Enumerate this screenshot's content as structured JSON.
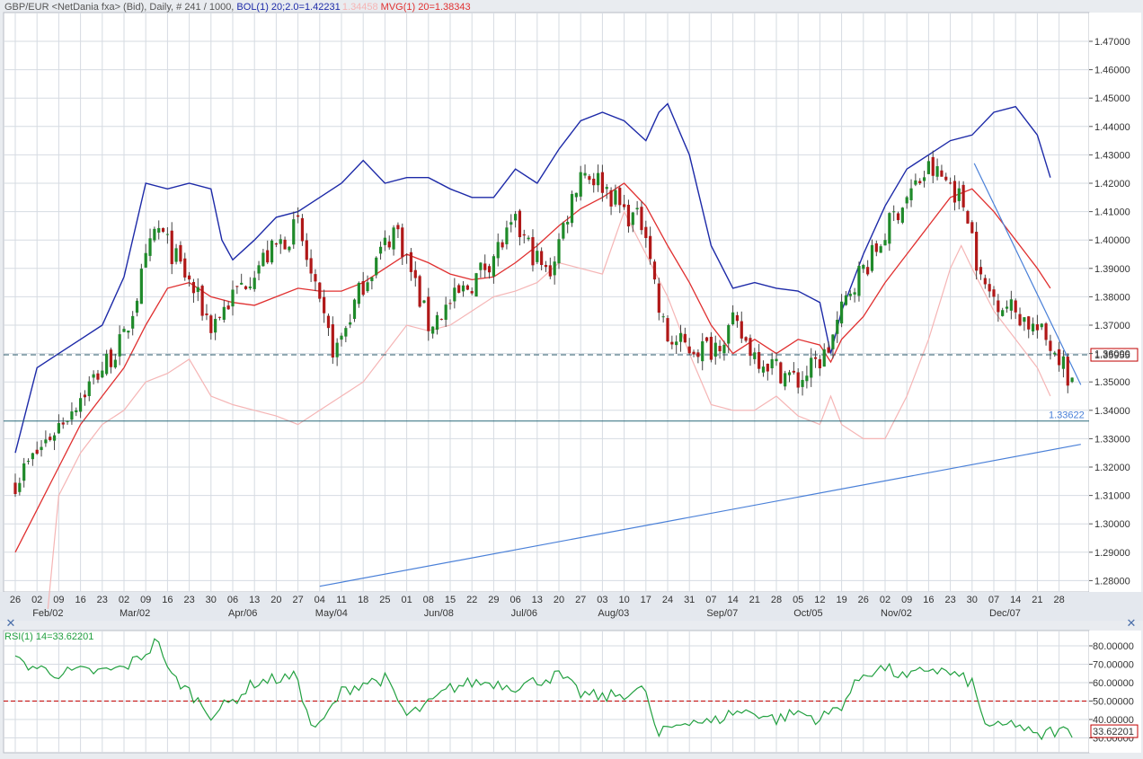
{
  "header": {
    "symbol": "GBP/EUR <NetDania fxa> (Bid), Daily, # 241 / 1000, ",
    "bol_label": "BOL(1) 20;2.0=1.42231",
    "bol_lower_label": "1.34458",
    "mvg_label": "MVG(1) 20=1.38343"
  },
  "rsi_panel": {
    "label": "RSI(1) 14=33.62201"
  },
  "price_axis": {
    "ticks": [
      "1.47000",
      "1.46000",
      "1.45000",
      "1.44000",
      "1.43000",
      "1.42000",
      "1.41000",
      "1.40000",
      "1.39000",
      "1.38000",
      "1.37000",
      "1.36000",
      "1.35000",
      "1.34000",
      "1.33000",
      "1.32000",
      "1.31000",
      "1.30000",
      "1.29000",
      "1.28000"
    ],
    "current_price": "1.35955",
    "support_level": "1.33622"
  },
  "rsi_axis": {
    "ticks": [
      "80.00000",
      "70.00000",
      "60.00000",
      "50.00000",
      "40.00000",
      "30.00000"
    ],
    "current_value": "33.62201"
  },
  "date_axis": {
    "days": [
      "26",
      "02",
      "09",
      "16",
      "23",
      "02",
      "09",
      "16",
      "23",
      "30",
      "06",
      "13",
      "20",
      "27",
      "04",
      "11",
      "18",
      "25",
      "01",
      "08",
      "15",
      "22",
      "29",
      "06",
      "13",
      "20",
      "27",
      "03",
      "10",
      "17",
      "24",
      "31",
      "07",
      "14",
      "21",
      "28",
      "05",
      "12",
      "19",
      "26",
      "02",
      "09",
      "16",
      "23",
      "30",
      "07",
      "14",
      "21",
      "28"
    ],
    "months": [
      {
        "label": "Feb/02",
        "index": 1
      },
      {
        "label": "Mar/02",
        "index": 5
      },
      {
        "label": "Apr/06",
        "index": 10
      },
      {
        "label": "May/04",
        "index": 14
      },
      {
        "label": "Jun/08",
        "index": 19
      },
      {
        "label": "Jul/06",
        "index": 23
      },
      {
        "label": "Aug/03",
        "index": 27
      },
      {
        "label": "Sep/07",
        "index": 32
      },
      {
        "label": "Oct/05",
        "index": 36
      },
      {
        "label": "Nov/02",
        "index": 40
      },
      {
        "label": "Dec/07",
        "index": 45
      }
    ]
  },
  "colors": {
    "up": "#1f8a2a",
    "down": "#b01818",
    "bol_upper": "#1d2aa8",
    "bol_lower": "#f5b5b5",
    "mvg": "#e03030",
    "trend": "#4a80d8",
    "rsi": "#22a040",
    "dash_red": "#c00000",
    "dash_price": "#2a5a6a"
  },
  "chart_data": {
    "type": "candlestick",
    "title": "GBP/EUR <NetDania fxa> (Bid), Daily",
    "ylim": [
      1.28,
      1.475
    ],
    "grid": true,
    "horizontal_lines": [
      1.33622,
      1.35955
    ],
    "trendlines": [
      {
        "x": [
          14,
          49
        ],
        "y": [
          1.278,
          1.328
        ]
      },
      {
        "x": [
          44.1,
          49
        ],
        "y": [
          1.427,
          1.349
        ]
      }
    ],
    "anchors": [
      [
        0,
        1.315,
        1.3,
        1.295
      ],
      [
        5,
        1.365,
        1.375,
        1.325
      ],
      [
        6.5,
        1.405,
        1.41,
        1.345
      ],
      [
        8,
        1.385,
        1.38,
        1.365
      ],
      [
        9,
        1.37,
        1.385,
        1.365
      ],
      [
        11,
        1.39,
        1.375,
        1.343
      ],
      [
        13,
        1.405,
        1.385,
        1.34
      ],
      [
        14,
        1.375,
        1.375,
        1.34
      ],
      [
        14.7,
        1.36,
        1.375,
        1.345
      ],
      [
        16,
        1.385,
        1.38,
        1.345
      ],
      [
        17.5,
        1.405,
        1.385,
        1.35
      ],
      [
        19,
        1.37,
        1.388,
        1.355
      ],
      [
        21,
        1.385,
        1.38,
        1.36
      ],
      [
        22,
        1.395,
        1.38,
        1.37
      ],
      [
        23,
        1.405,
        1.385,
        1.38
      ],
      [
        24.5,
        1.387,
        1.397,
        1.38
      ],
      [
        26,
        1.425,
        1.405,
        1.385
      ],
      [
        27,
        1.42,
        1.415,
        1.39
      ],
      [
        28,
        1.41,
        1.422,
        1.4
      ],
      [
        29,
        1.405,
        1.415,
        1.395
      ],
      [
        29.6,
        1.375,
        1.405,
        1.37
      ],
      [
        30,
        1.365,
        1.395,
        1.36
      ],
      [
        31,
        1.362,
        1.385,
        1.35
      ],
      [
        32,
        1.362,
        1.374,
        1.345
      ],
      [
        33,
        1.37,
        1.368,
        1.343
      ],
      [
        34,
        1.36,
        1.363,
        1.34
      ],
      [
        35,
        1.355,
        1.36,
        1.338
      ],
      [
        36,
        1.35,
        1.357,
        1.335
      ],
      [
        37.3,
        1.36,
        1.355,
        1.333
      ],
      [
        38.5,
        1.385,
        1.365,
        1.34
      ],
      [
        39.5,
        1.395,
        1.38,
        1.365
      ],
      [
        40.5,
        1.41,
        1.392,
        1.37
      ],
      [
        42,
        1.425,
        1.405,
        1.385
      ],
      [
        43,
        1.42,
        1.415,
        1.395
      ],
      [
        43.8,
        1.41,
        1.418,
        1.4
      ],
      [
        44.4,
        1.385,
        1.41,
        1.39
      ],
      [
        45,
        1.38,
        1.4,
        1.383
      ],
      [
        46,
        1.375,
        1.392,
        1.37
      ],
      [
        47,
        1.368,
        1.385,
        1.355
      ],
      [
        48,
        1.36,
        1.378,
        1.345
      ],
      [
        48.5,
        1.35,
        1.374,
        1.345
      ]
    ],
    "bb_upper": [
      [
        0,
        1.325
      ],
      [
        1,
        1.355
      ],
      [
        2,
        1.36
      ],
      [
        3,
        1.365
      ],
      [
        4,
        1.37
      ],
      [
        5,
        1.387
      ],
      [
        6,
        1.42
      ],
      [
        7,
        1.418
      ],
      [
        8,
        1.42
      ],
      [
        9,
        1.418
      ],
      [
        9.5,
        1.4
      ],
      [
        10,
        1.393
      ],
      [
        11,
        1.4
      ],
      [
        12,
        1.408
      ],
      [
        13,
        1.41
      ],
      [
        14,
        1.415
      ],
      [
        15,
        1.42
      ],
      [
        16,
        1.428
      ],
      [
        17,
        1.42
      ],
      [
        18,
        1.422
      ],
      [
        19,
        1.422
      ],
      [
        20,
        1.418
      ],
      [
        21,
        1.415
      ],
      [
        22,
        1.415
      ],
      [
        23,
        1.425
      ],
      [
        24,
        1.42
      ],
      [
        25,
        1.432
      ],
      [
        26,
        1.442
      ],
      [
        27,
        1.445
      ],
      [
        28,
        1.442
      ],
      [
        29,
        1.435
      ],
      [
        29.6,
        1.445
      ],
      [
        30,
        1.448
      ],
      [
        31,
        1.43
      ],
      [
        32,
        1.398
      ],
      [
        33,
        1.383
      ],
      [
        34,
        1.385
      ],
      [
        35,
        1.383
      ],
      [
        36,
        1.382
      ],
      [
        37,
        1.378
      ],
      [
        37.5,
        1.36
      ],
      [
        38,
        1.375
      ],
      [
        39,
        1.395
      ],
      [
        40,
        1.412
      ],
      [
        41,
        1.425
      ],
      [
        42,
        1.43
      ],
      [
        43,
        1.435
      ],
      [
        44,
        1.437
      ],
      [
        45,
        1.445
      ],
      [
        46,
        1.447
      ],
      [
        47,
        1.437
      ],
      [
        47.6,
        1.422
      ]
    ],
    "bb_lower": [
      [
        1.5,
        1.27
      ],
      [
        2,
        1.31
      ],
      [
        3,
        1.325
      ],
      [
        4,
        1.335
      ],
      [
        5,
        1.34
      ],
      [
        6,
        1.35
      ],
      [
        7,
        1.353
      ],
      [
        8,
        1.358
      ],
      [
        9,
        1.345
      ],
      [
        10,
        1.342
      ],
      [
        11,
        1.34
      ],
      [
        12,
        1.338
      ],
      [
        13,
        1.335
      ],
      [
        14,
        1.34
      ],
      [
        15,
        1.345
      ],
      [
        16,
        1.35
      ],
      [
        17,
        1.36
      ],
      [
        18,
        1.37
      ],
      [
        19,
        1.368
      ],
      [
        20,
        1.37
      ],
      [
        21,
        1.375
      ],
      [
        22,
        1.38
      ],
      [
        23,
        1.382
      ],
      [
        24,
        1.385
      ],
      [
        25,
        1.392
      ],
      [
        26,
        1.39
      ],
      [
        27,
        1.388
      ],
      [
        28,
        1.41
      ],
      [
        29,
        1.395
      ],
      [
        30,
        1.38
      ],
      [
        31,
        1.36
      ],
      [
        32,
        1.342
      ],
      [
        33,
        1.34
      ],
      [
        34,
        1.34
      ],
      [
        35,
        1.345
      ],
      [
        36,
        1.338
      ],
      [
        37,
        1.335
      ],
      [
        37.5,
        1.345
      ],
      [
        38,
        1.335
      ],
      [
        39,
        1.33
      ],
      [
        40,
        1.33
      ],
      [
        41,
        1.345
      ],
      [
        42,
        1.365
      ],
      [
        43,
        1.39
      ],
      [
        43.5,
        1.398
      ],
      [
        44,
        1.39
      ],
      [
        45,
        1.375
      ],
      [
        46,
        1.365
      ],
      [
        47,
        1.355
      ],
      [
        47.6,
        1.345
      ]
    ],
    "mvg20": [
      [
        0,
        1.29
      ],
      [
        1,
        1.305
      ],
      [
        2,
        1.32
      ],
      [
        3,
        1.335
      ],
      [
        4,
        1.345
      ],
      [
        5,
        1.355
      ],
      [
        6,
        1.37
      ],
      [
        7,
        1.383
      ],
      [
        8,
        1.385
      ],
      [
        9,
        1.38
      ],
      [
        10,
        1.378
      ],
      [
        11,
        1.377
      ],
      [
        12,
        1.38
      ],
      [
        13,
        1.383
      ],
      [
        14,
        1.382
      ],
      [
        15,
        1.382
      ],
      [
        16,
        1.385
      ],
      [
        17,
        1.39
      ],
      [
        18,
        1.395
      ],
      [
        19,
        1.392
      ],
      [
        20,
        1.388
      ],
      [
        21,
        1.386
      ],
      [
        22,
        1.387
      ],
      [
        23,
        1.392
      ],
      [
        24,
        1.398
      ],
      [
        25,
        1.405
      ],
      [
        26,
        1.411
      ],
      [
        27,
        1.415
      ],
      [
        28,
        1.42
      ],
      [
        29,
        1.412
      ],
      [
        30,
        1.398
      ],
      [
        31,
        1.385
      ],
      [
        32,
        1.37
      ],
      [
        33,
        1.36
      ],
      [
        34,
        1.365
      ],
      [
        35,
        1.36
      ],
      [
        36,
        1.365
      ],
      [
        37,
        1.363
      ],
      [
        37.5,
        1.357
      ],
      [
        38,
        1.365
      ],
      [
        39,
        1.373
      ],
      [
        40,
        1.385
      ],
      [
        41,
        1.395
      ],
      [
        42,
        1.405
      ],
      [
        43,
        1.415
      ],
      [
        44,
        1.418
      ],
      [
        45,
        1.41
      ],
      [
        46,
        1.4
      ],
      [
        47,
        1.39
      ],
      [
        47.6,
        1.383
      ]
    ],
    "rsi": [
      [
        0,
        72
      ],
      [
        1,
        68
      ],
      [
        2,
        65
      ],
      [
        3,
        66
      ],
      [
        4,
        66
      ],
      [
        5,
        68
      ],
      [
        6,
        76
      ],
      [
        6.6,
        84
      ],
      [
        7,
        66
      ],
      [
        8,
        55
      ],
      [
        9,
        43
      ],
      [
        10,
        50
      ],
      [
        11,
        60
      ],
      [
        12,
        62
      ],
      [
        13,
        63
      ],
      [
        13.5,
        38
      ],
      [
        14,
        36
      ],
      [
        15,
        55
      ],
      [
        16,
        60
      ],
      [
        17,
        62
      ],
      [
        18,
        42
      ],
      [
        19,
        48
      ],
      [
        20,
        57
      ],
      [
        21,
        60
      ],
      [
        22,
        60
      ],
      [
        23,
        58
      ],
      [
        24,
        61
      ],
      [
        25,
        64
      ],
      [
        26,
        54
      ],
      [
        27,
        52
      ],
      [
        28,
        54
      ],
      [
        29,
        56
      ],
      [
        29.5,
        30
      ],
      [
        30,
        35
      ],
      [
        31,
        40
      ],
      [
        32,
        38
      ],
      [
        33,
        44
      ],
      [
        34,
        44
      ],
      [
        35,
        40
      ],
      [
        36,
        44
      ],
      [
        37,
        40
      ],
      [
        38,
        48
      ],
      [
        39,
        65
      ],
      [
        40,
        68
      ],
      [
        41,
        62
      ],
      [
        42,
        68
      ],
      [
        43,
        65
      ],
      [
        44,
        60
      ],
      [
        44.5,
        40
      ],
      [
        45,
        35
      ],
      [
        46,
        38
      ],
      [
        47,
        30
      ],
      [
        47.6,
        33.6
      ]
    ],
    "ohlc": []
  }
}
